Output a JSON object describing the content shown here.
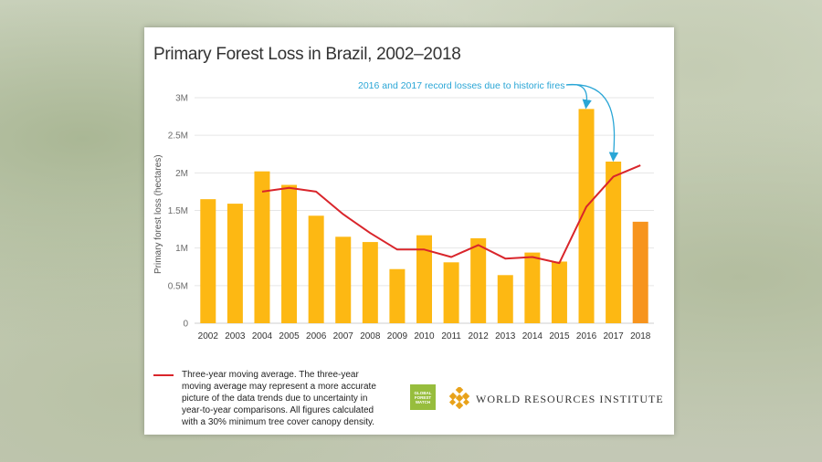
{
  "title": "Primary Forest Loss in Brazil, 2002–2018",
  "annotation": "2016 and 2017 record losses due to historic fires",
  "legend_text": "Three-year moving average. The three-year moving average may represent a more accurate picture of the data trends due to uncertainty in year-to-year comparisons. All figures calculated with a 30% minimum tree cover canopy density.",
  "gfw_logo_text": "GLOBAL FOREST WATCH",
  "wri_text": "WORLD RESOURCES INSTITUTE",
  "colors": {
    "bar": "#fdb813",
    "bar_highlight": "#f7941d",
    "line": "#d9252b",
    "annotation": "#2aa6d6"
  },
  "chart_data": {
    "type": "bar",
    "title": "Primary Forest Loss in Brazil, 2002–2018",
    "ylabel": "Primary forest loss (hectares)",
    "xlabel": "",
    "ylim": [
      0,
      3000000
    ],
    "yticks": [
      0,
      500000,
      1000000,
      1500000,
      2000000,
      2500000,
      3000000
    ],
    "ytick_labels": [
      "0",
      "0.5M",
      "1M",
      "1.5M",
      "2M",
      "2.5M",
      "3M"
    ],
    "grid": true,
    "categories": [
      "2002",
      "2003",
      "2004",
      "2005",
      "2006",
      "2007",
      "2008",
      "2009",
      "2010",
      "2011",
      "2012",
      "2013",
      "2014",
      "2015",
      "2016",
      "2017",
      "2018"
    ],
    "series": [
      {
        "type": "bar",
        "values": [
          1650000,
          1590000,
          2020000,
          1840000,
          1430000,
          1150000,
          1080000,
          720000,
          1170000,
          810000,
          1130000,
          640000,
          940000,
          820000,
          2850000,
          2150000,
          1350000
        ]
      },
      {
        "type": "line",
        "name": "Three-year moving average",
        "values": [
          null,
          null,
          1750000,
          1800000,
          1750000,
          1450000,
          1200000,
          980000,
          980000,
          880000,
          1040000,
          860000,
          880000,
          800000,
          1550000,
          1950000,
          2100000
        ]
      }
    ],
    "highlight_category": "2018",
    "annotation": {
      "text": "2016 and 2017 record losses due to historic fires",
      "targets": [
        "2016",
        "2017"
      ]
    }
  }
}
